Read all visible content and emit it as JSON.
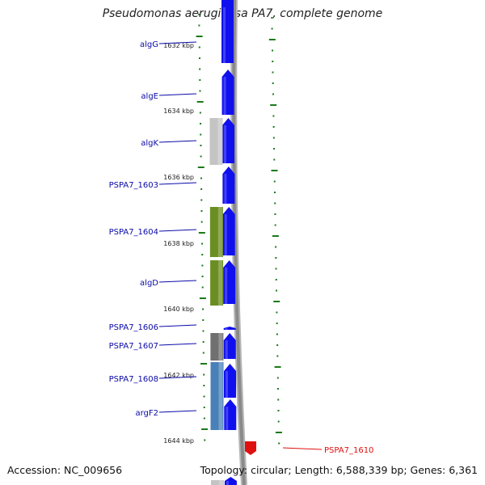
{
  "title": "Pseudomonas aeruginosa PA7, complete genome",
  "footer": {
    "accession": "Accession: NC_009656",
    "topology": "Topology: circular; Length: 6,588,339 bp; Genes: 6,361"
  },
  "colors": {
    "cds_forward": "#1010ee",
    "label_blue": "#0a0aa8",
    "label_red": "#e01010",
    "tick_green": "#1a7a1a",
    "backbone_gray": "#8a8a8a",
    "olive": "#6b8e23",
    "steel_blue": "#4a80b8",
    "light_gray": "#c4c4c4",
    "dark_gray": "#707070"
  },
  "scale_labels": [
    "1632 kbp",
    "1634 kbp",
    "1636 kbp",
    "1638 kbp",
    "1640 kbp",
    "1642 kbp",
    "1644 kbp"
  ],
  "genes": [
    {
      "name": "algG",
      "color": "#0a0aa8"
    },
    {
      "name": "algE",
      "color": "#0a0aa8"
    },
    {
      "name": "algK",
      "color": "#0a0aa8"
    },
    {
      "name": "PSPA7_1603",
      "color": "#0a0aa8"
    },
    {
      "name": "PSPA7_1604",
      "color": "#0a0aa8"
    },
    {
      "name": "algD",
      "color": "#0a0aa8"
    },
    {
      "name": "PSPA7_1606",
      "color": "#0a0aa8"
    },
    {
      "name": "PSPA7_1607",
      "color": "#0a0aa8"
    },
    {
      "name": "PSPA7_1608",
      "color": "#0a0aa8"
    },
    {
      "name": "argF2",
      "color": "#0a0aa8"
    },
    {
      "name": "PSPA7_1610",
      "color": "#e01010"
    }
  ]
}
